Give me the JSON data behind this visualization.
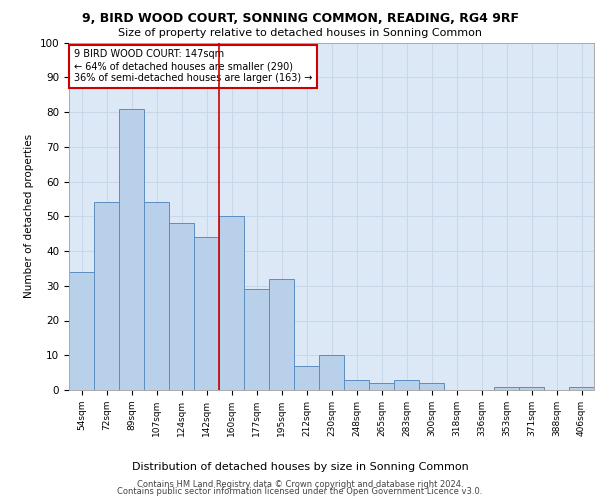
{
  "title1": "9, BIRD WOOD COURT, SONNING COMMON, READING, RG4 9RF",
  "title2": "Size of property relative to detached houses in Sonning Common",
  "xlabel": "Distribution of detached houses by size in Sonning Common",
  "ylabel": "Number of detached properties",
  "footer1": "Contains HM Land Registry data © Crown copyright and database right 2024.",
  "footer2": "Contains public sector information licensed under the Open Government Licence v3.0.",
  "categories": [
    "54sqm",
    "72sqm",
    "89sqm",
    "107sqm",
    "124sqm",
    "142sqm",
    "160sqm",
    "177sqm",
    "195sqm",
    "212sqm",
    "230sqm",
    "248sqm",
    "265sqm",
    "283sqm",
    "300sqm",
    "318sqm",
    "336sqm",
    "353sqm",
    "371sqm",
    "388sqm",
    "406sqm"
  ],
  "values": [
    34,
    54,
    81,
    54,
    48,
    44,
    50,
    29,
    32,
    7,
    10,
    3,
    2,
    3,
    2,
    0,
    0,
    1,
    1,
    0,
    1
  ],
  "bar_color": "#b8d0ea",
  "bar_edge_color": "#5b8dc0",
  "grid_color": "#c8d8ea",
  "background_color": "#dce8f5",
  "annotation_text": "9 BIRD WOOD COURT: 147sqm\n← 64% of detached houses are smaller (290)\n36% of semi-detached houses are larger (163) →",
  "annotation_box_color": "#ffffff",
  "annotation_box_edge": "#cc0000",
  "ylim": [
    0,
    100
  ],
  "yticks": [
    0,
    10,
    20,
    30,
    40,
    50,
    60,
    70,
    80,
    90,
    100
  ]
}
